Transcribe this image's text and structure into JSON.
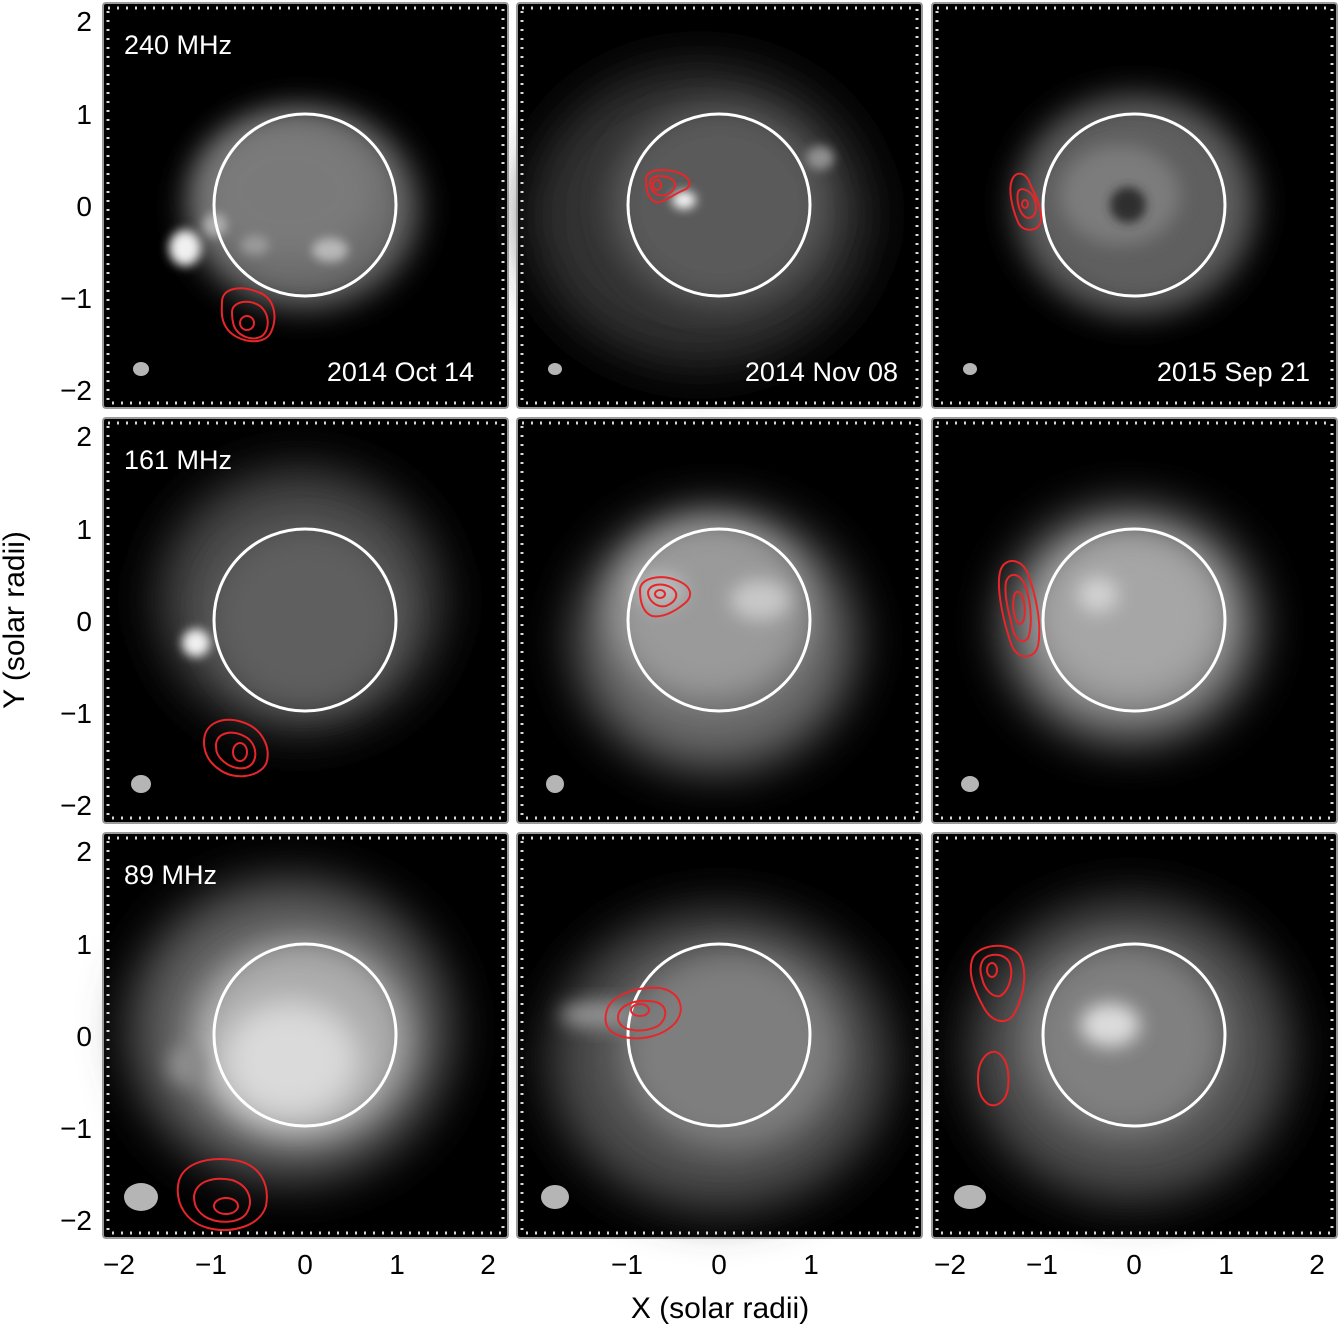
{
  "figure": {
    "xlabel": "X (solar radii)",
    "ylabel": "Y (solar radii)",
    "x_ticks": [
      "−2",
      "−1",
      "0",
      "1",
      "2"
    ],
    "x_ticks_middle": [
      "−1",
      "0",
      "1"
    ],
    "y_ticks": [
      "2",
      "1",
      "0",
      "−1",
      "−2"
    ],
    "axis_range": [
      -2.2,
      2.2
    ],
    "disk_radius": 1.0,
    "rows": [
      {
        "frequency": "240 MHz"
      },
      {
        "frequency": "161 MHz"
      },
      {
        "frequency": "89 MHz"
      }
    ],
    "columns": [
      {
        "date": "2014 Oct 14"
      },
      {
        "date": "2014 Nov 08"
      },
      {
        "date": "2015 Sep 21"
      }
    ],
    "colors": {
      "background": "#000000",
      "disk_circle": "#ffffff",
      "contours": "#e8262a",
      "beam": "#b5b5b5"
    }
  }
}
